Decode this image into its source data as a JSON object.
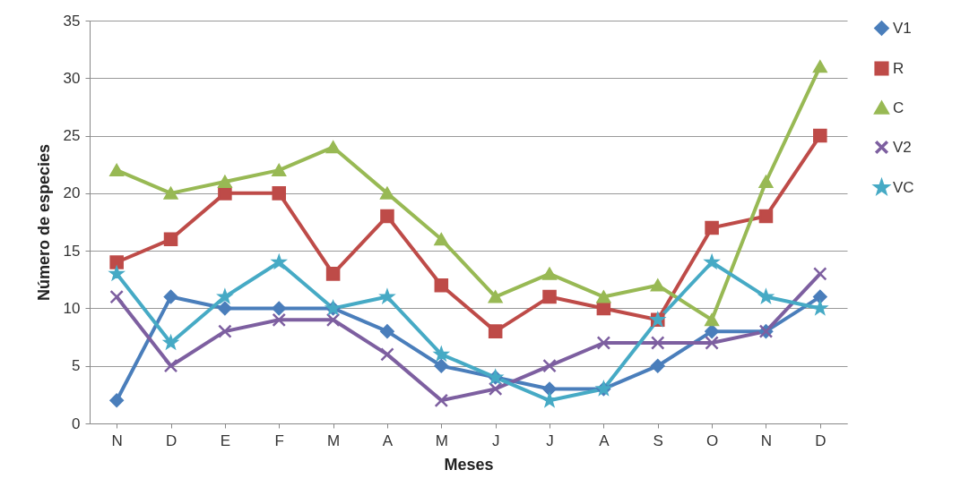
{
  "chart_data": {
    "type": "line",
    "xlabel": "Meses",
    "ylabel": "Número de especies",
    "categories": [
      "N",
      "D",
      "E",
      "F",
      "M",
      "A",
      "M",
      "J",
      "J",
      "A",
      "S",
      "O",
      "N",
      "D"
    ],
    "ylim": [
      0,
      35
    ],
    "yticks": [
      0,
      5,
      10,
      15,
      20,
      25,
      30,
      35
    ],
    "grid": "y",
    "legend": "right",
    "line_style": "solid",
    "series": [
      {
        "name": "V1",
        "color": "#4a7ebb",
        "marker": "diamond",
        "values": [
          2,
          11,
          10,
          10,
          10,
          8,
          5,
          4,
          3,
          3,
          5,
          8,
          8,
          11
        ]
      },
      {
        "name": "R",
        "color": "#be4b48",
        "marker": "square",
        "values": [
          14,
          16,
          20,
          20,
          13,
          18,
          12,
          8,
          11,
          10,
          9,
          17,
          18,
          25
        ]
      },
      {
        "name": "C",
        "color": "#98b954",
        "marker": "triangle",
        "values": [
          22,
          20,
          21,
          22,
          24,
          20,
          16,
          11,
          13,
          11,
          12,
          9,
          21,
          31
        ]
      },
      {
        "name": "V2",
        "color": "#7d5fa0",
        "marker": "cross",
        "values": [
          11,
          5,
          8,
          9,
          9,
          6,
          2,
          3,
          5,
          7,
          7,
          7,
          8,
          13
        ]
      },
      {
        "name": "VC",
        "color": "#46aac5",
        "marker": "star",
        "values": [
          13,
          7,
          11,
          14,
          10,
          11,
          6,
          4,
          2,
          3,
          9,
          14,
          11,
          10
        ]
      }
    ]
  }
}
